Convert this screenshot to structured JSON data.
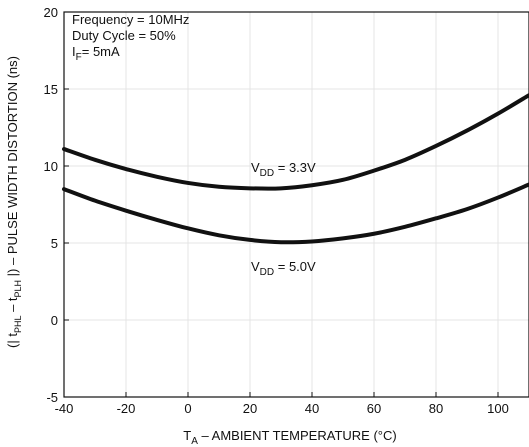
{
  "chart_data": {
    "type": "line",
    "title": "",
    "xlabel": {
      "main": "T",
      "sub": "A",
      "rest": " – AMBIENT TEMPERATURE (°C)"
    },
    "ylabel": "(| tₚʜʟ – tₚʟʜ |) – PULSE WIDTH DISTORTION (ns)",
    "ylabel_parts": {
      "open": "(| t",
      "sub1": "PHL",
      "mid": " – t",
      "sub2": "PLH",
      "close": " |) – PULSE WIDTH DISTORTION (ns)"
    },
    "xlim": [
      -40,
      110
    ],
    "ylim": [
      -5,
      20
    ],
    "x_ticks": [
      -40,
      -20,
      0,
      20,
      40,
      60,
      80,
      100
    ],
    "y_ticks": [
      -5,
      0,
      5,
      10,
      15,
      20
    ],
    "grid": true,
    "annotation_lines": [
      {
        "text": "Frequency = 10MHz"
      },
      {
        "text": "Duty Cycle = 50%"
      },
      {
        "main": "I",
        "sub": "F",
        "rest": "= 5mA"
      }
    ],
    "series": [
      {
        "label": {
          "main": "V",
          "sub": "DD",
          "rest": " = 3.3V"
        },
        "color": "#111111",
        "x": [
          -40,
          -30,
          -20,
          -10,
          0,
          10,
          20,
          30,
          40,
          50,
          60,
          70,
          80,
          90,
          100,
          110
        ],
        "y": [
          11.1,
          10.4,
          9.8,
          9.3,
          8.9,
          8.65,
          8.55,
          8.55,
          8.75,
          9.1,
          9.7,
          10.4,
          11.3,
          12.3,
          13.4,
          14.6
        ]
      },
      {
        "label": {
          "main": "V",
          "sub": "DD",
          "rest": " = 5.0V"
        },
        "color": "#111111",
        "x": [
          -40,
          -30,
          -20,
          -10,
          0,
          10,
          20,
          30,
          40,
          50,
          60,
          70,
          80,
          90,
          100,
          110
        ],
        "y": [
          8.5,
          7.75,
          7.1,
          6.5,
          5.95,
          5.5,
          5.2,
          5.05,
          5.1,
          5.3,
          5.6,
          6.05,
          6.6,
          7.2,
          7.95,
          8.8
        ]
      }
    ]
  }
}
